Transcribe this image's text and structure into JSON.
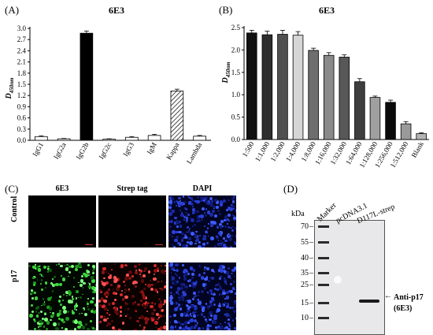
{
  "panels": {
    "a": "(A)",
    "b": "(B)",
    "c": "(C)",
    "d": "(D)"
  },
  "chart_data": [
    {
      "type": "bar",
      "title": "6E3",
      "ylabel": "D",
      "ylabel_sub": "450nm",
      "categories": [
        "IgG1",
        "IgG2a",
        "IgG2b",
        "IgG2c",
        "IgG3",
        "IgM",
        "Kappa",
        "Lambda"
      ],
      "values": [
        0.1,
        0.04,
        2.87,
        0.03,
        0.08,
        0.13,
        1.32,
        0.11
      ],
      "errors": [
        0.02,
        0.01,
        0.06,
        0.01,
        0.02,
        0.03,
        0.05,
        0.02
      ],
      "fills": [
        "#ffffff",
        "#ffffff",
        "#000000",
        "#ffffff",
        "#ffffff",
        "#ffffff",
        "hatch",
        "#ffffff"
      ],
      "ylim": [
        0,
        3.0
      ],
      "yticks": [
        "0.0",
        "0.3",
        "0.6",
        "0.9",
        "1.2",
        "1.5",
        "1.8",
        "2.1",
        "2.4",
        "2.7",
        "3.0"
      ]
    },
    {
      "type": "bar",
      "title": "6E3",
      "ylabel": "D",
      "ylabel_sub": "450nm",
      "categories": [
        "1:500",
        "1:1,000",
        "1:2,000",
        "1:4,000",
        "1:8,000",
        "1:16,000",
        "1:32,000",
        "1:64,000",
        "1:128,000",
        "1:256,000",
        "1:512,000",
        "Blank"
      ],
      "values": [
        2.38,
        2.34,
        2.35,
        2.33,
        1.99,
        1.88,
        1.84,
        1.29,
        0.94,
        0.83,
        0.35,
        0.13
      ],
      "errors": [
        0.06,
        0.08,
        0.09,
        0.08,
        0.05,
        0.06,
        0.05,
        0.07,
        0.03,
        0.05,
        0.05,
        0.02
      ],
      "fills": [
        "#111111",
        "#2e2e2e",
        "#505050",
        "#d6d6d6",
        "#6e6e6e",
        "#8a8a8a",
        "#585858",
        "#3e3e3e",
        "#a0a0a0",
        "#0a0a0a",
        "#9a9a9a",
        "#b4b4b4"
      ],
      "ylim": [
        0,
        2.5
      ],
      "yticks": [
        "0.0",
        "0.5",
        "1.0",
        "1.5",
        "2.0",
        "2.5"
      ]
    }
  ],
  "images": {
    "col_headers": [
      "6E3",
      "Strep tag",
      "DAPI"
    ],
    "row_labels": [
      "Control",
      "p17"
    ]
  },
  "blot": {
    "kda_label": "kDa",
    "markers": [
      "70",
      "55",
      "40",
      "35",
      "25",
      "15",
      "10"
    ],
    "lane_labels": [
      "Marker",
      "pcDNA3.1",
      "D117L-strep"
    ],
    "band_label": "Anti-p17",
    "band_sublabel": "(6E3)",
    "arrow": "←"
  }
}
